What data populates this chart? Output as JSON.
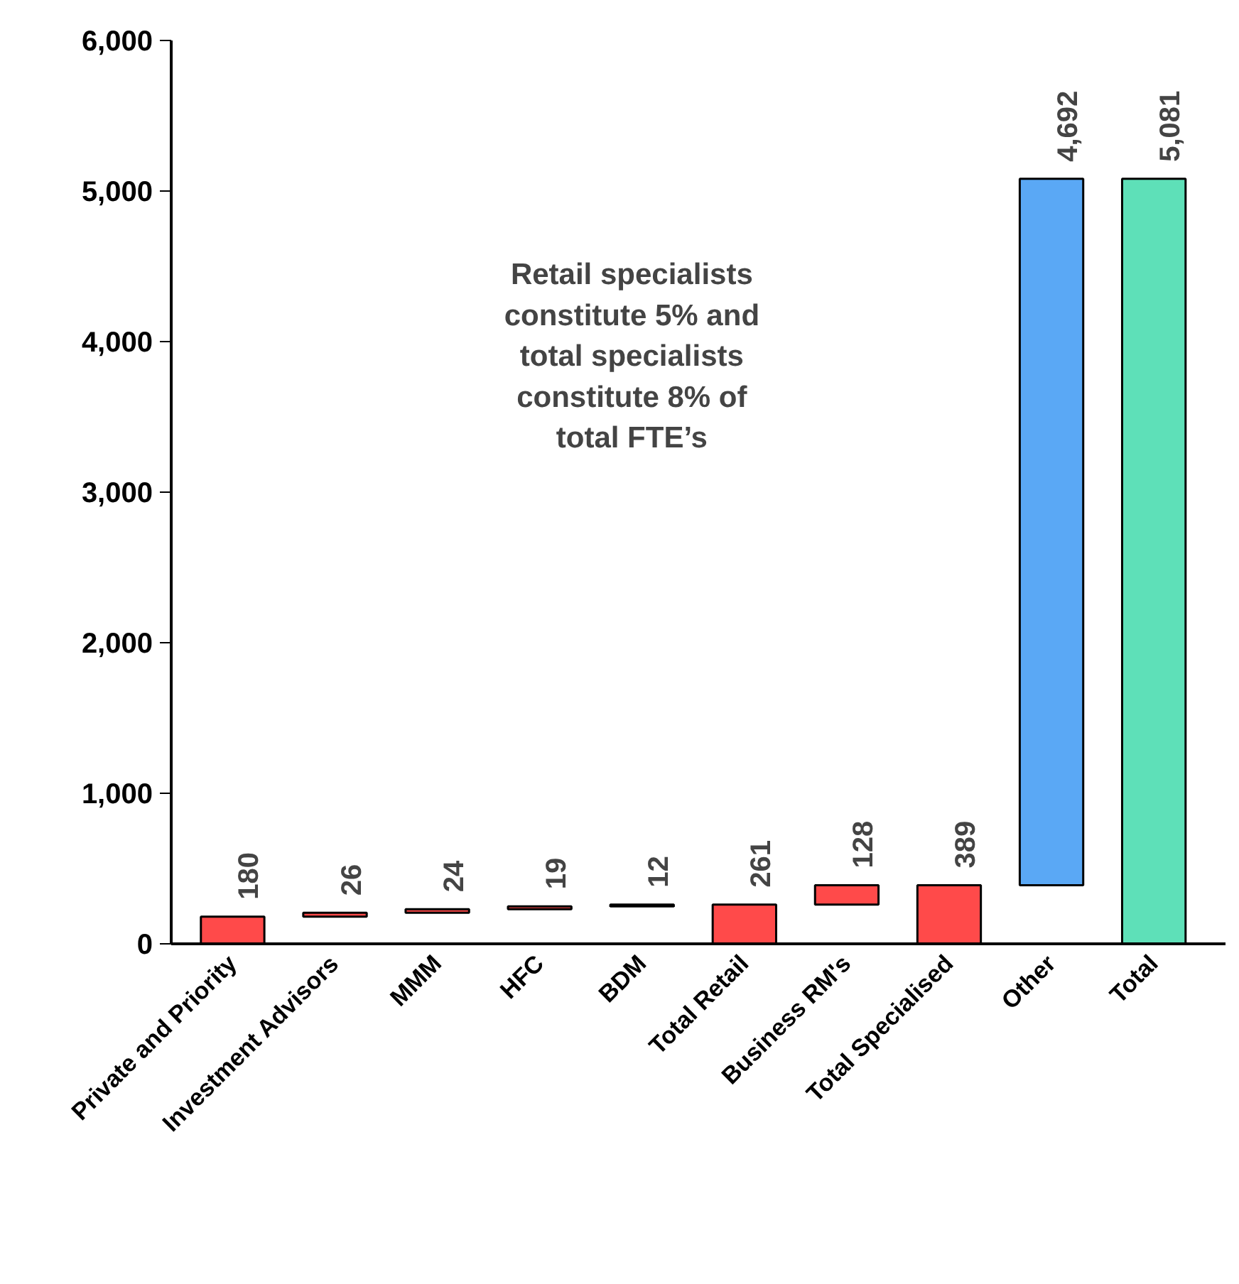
{
  "chart_data": {
    "type": "bar",
    "categories": [
      "Private and Priority",
      "Investment Advisors",
      "MMM",
      "HFC",
      "BDM",
      "Total Retail",
      "Business RM's",
      "Total Specialised",
      "Other",
      "Total"
    ],
    "values": [
      180,
      26,
      24,
      19,
      12,
      261,
      128,
      389,
      4692,
      5081
    ],
    "base": [
      0,
      180,
      206,
      230,
      249,
      0,
      261,
      0,
      389,
      0
    ],
    "colors": [
      "#ff4a4a",
      "#ff4a4a",
      "#ff4a4a",
      "#ff4a4a",
      "#ff4a4a",
      "#ff4a4a",
      "#ff4a4a",
      "#ff4a4a",
      "#5aa8f5",
      "#5ee0b8"
    ],
    "value_labels": [
      "180",
      "26",
      "24",
      "19",
      "12",
      "261",
      "128",
      "389",
      "4,692",
      "5,081"
    ],
    "ylim": [
      0,
      6000
    ],
    "yticks": [
      0,
      {
        "value": 1000,
        "label": "1,000"
      },
      {
        "value": 2000,
        "label": "2,000"
      },
      {
        "value": 3000,
        "label": "3,000"
      },
      {
        "value": 4000,
        "label": "4,000"
      },
      {
        "value": 5000,
        "label": "5,000"
      },
      {
        "value": 6000,
        "label": "6,000"
      }
    ],
    "annotations": [
      "Retail specialists constitute 5% and total specialists constitute 8% of total FTE’s"
    ],
    "grid": false
  }
}
